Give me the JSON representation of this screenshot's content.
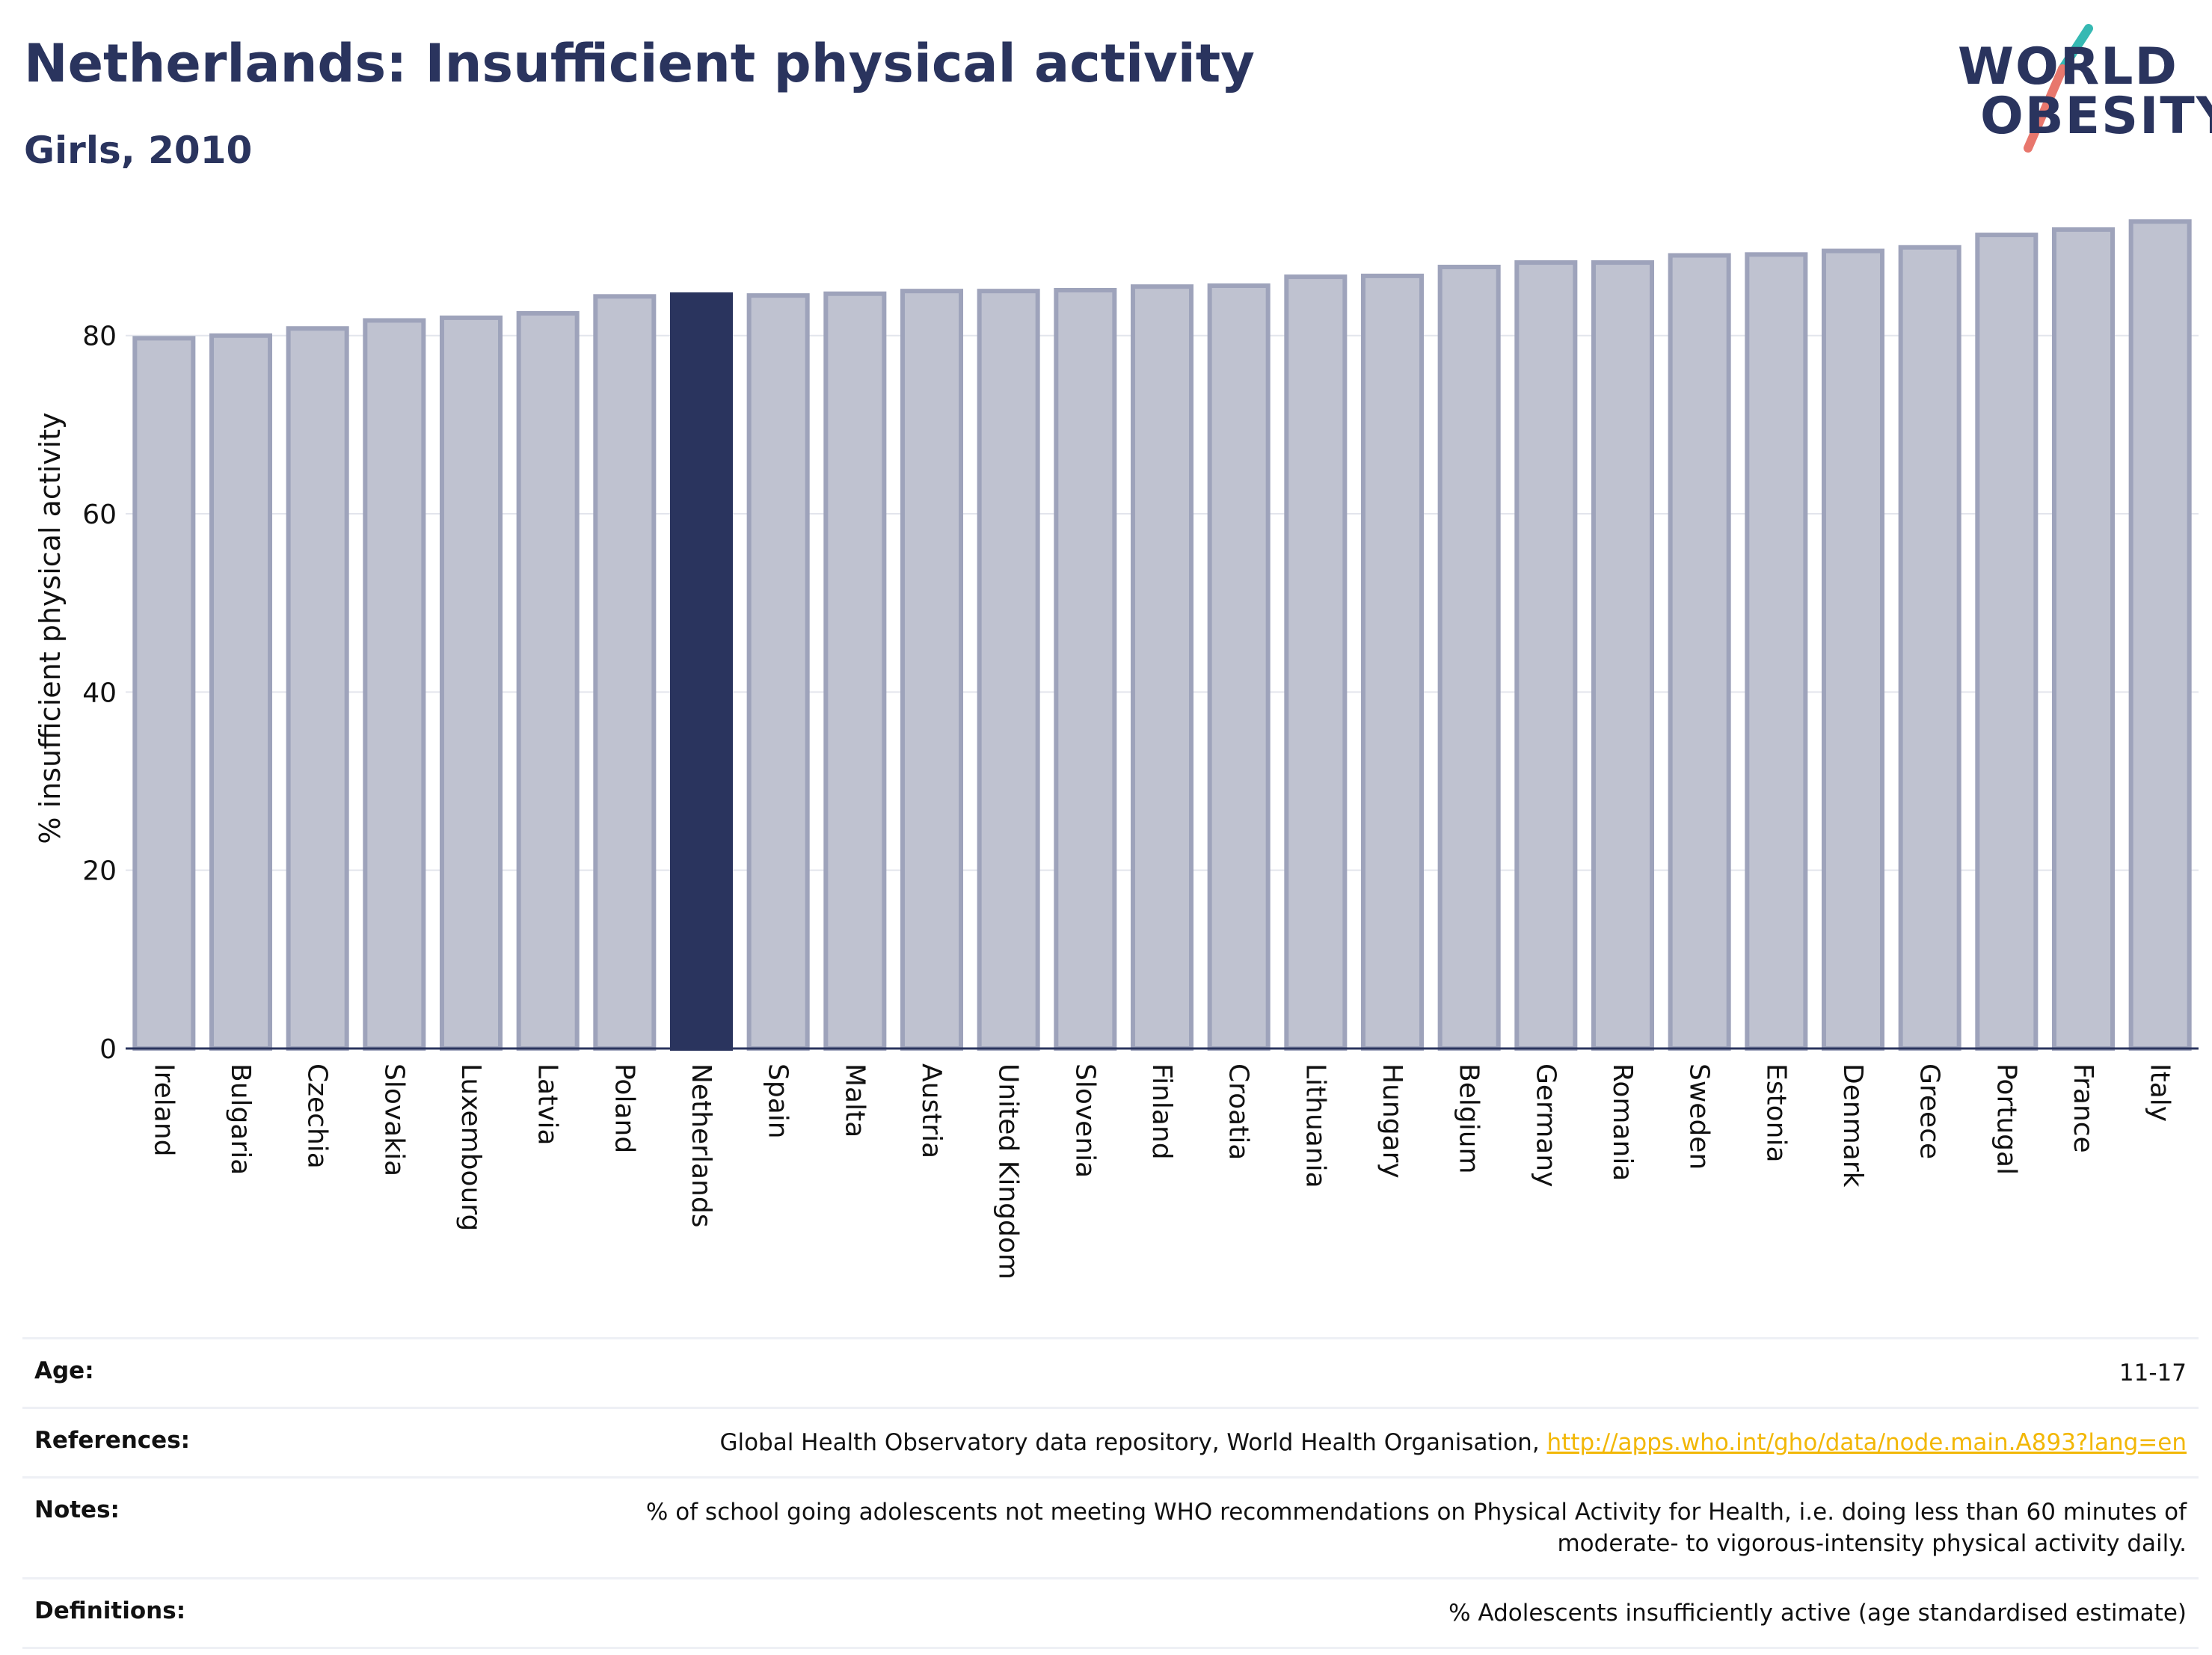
{
  "header": {
    "title": "Netherlands: Insufficient physical activity",
    "subtitle": "Girls, 2010",
    "logo": {
      "line1": "WORLD",
      "line2": "OBESITY"
    }
  },
  "colors": {
    "highlight": "#2a345e",
    "bar_fill": "#bfc2d0",
    "bar_outline": "#9ea3bb",
    "logo_slash_teal": "#36b9b3",
    "logo_slash_coral": "#e8776d",
    "link": "#f2b705"
  },
  "chart_data": {
    "type": "bar",
    "title": "Netherlands: Insufficient physical activity",
    "subtitle": "Girls, 2010",
    "ylabel": "% insufficient physical activity",
    "xlabel": "",
    "ylim": [
      0,
      95
    ],
    "yticks": [
      0,
      20,
      40,
      60,
      80
    ],
    "grid": true,
    "highlight": "Netherlands",
    "categories": [
      "Ireland",
      "Bulgaria",
      "Czechia",
      "Slovakia",
      "Luxembourg",
      "Latvia",
      "Poland",
      "Netherlands",
      "Spain",
      "Malta",
      "Austria",
      "United Kingdom",
      "Slovenia",
      "Finland",
      "Croatia",
      "Lithuania",
      "Hungary",
      "Belgium",
      "Germany",
      "Romania",
      "Sweden",
      "Estonia",
      "Denmark",
      "Greece",
      "Portugal",
      "France",
      "Italy"
    ],
    "values": [
      79.7,
      80.0,
      80.8,
      81.7,
      82.0,
      82.5,
      84.4,
      84.6,
      84.5,
      84.7,
      85.0,
      85.0,
      85.1,
      85.5,
      85.6,
      86.6,
      86.7,
      87.7,
      88.2,
      88.2,
      89.0,
      89.1,
      89.5,
      89.9,
      91.3,
      91.9,
      92.8
    ]
  },
  "info_table": {
    "age": {
      "label": "Age:",
      "value": "11-17"
    },
    "references": {
      "label": "References:",
      "value": "Global Health Observatory data repository, World Health Organisation, ",
      "link": "http://apps.who.int/gho/data/node.main.A893?lang=en"
    },
    "notes": {
      "label": "Notes:",
      "value": "% of school going adolescents not meeting WHO recommendations on Physical Activity for Health, i.e. doing less than 60 minutes of moderate- to vigorous-intensity physical activity daily."
    },
    "definitions": {
      "label": "Definitions:",
      "value": "% Adolescents insufficiently active (age standardised estimate)"
    }
  }
}
